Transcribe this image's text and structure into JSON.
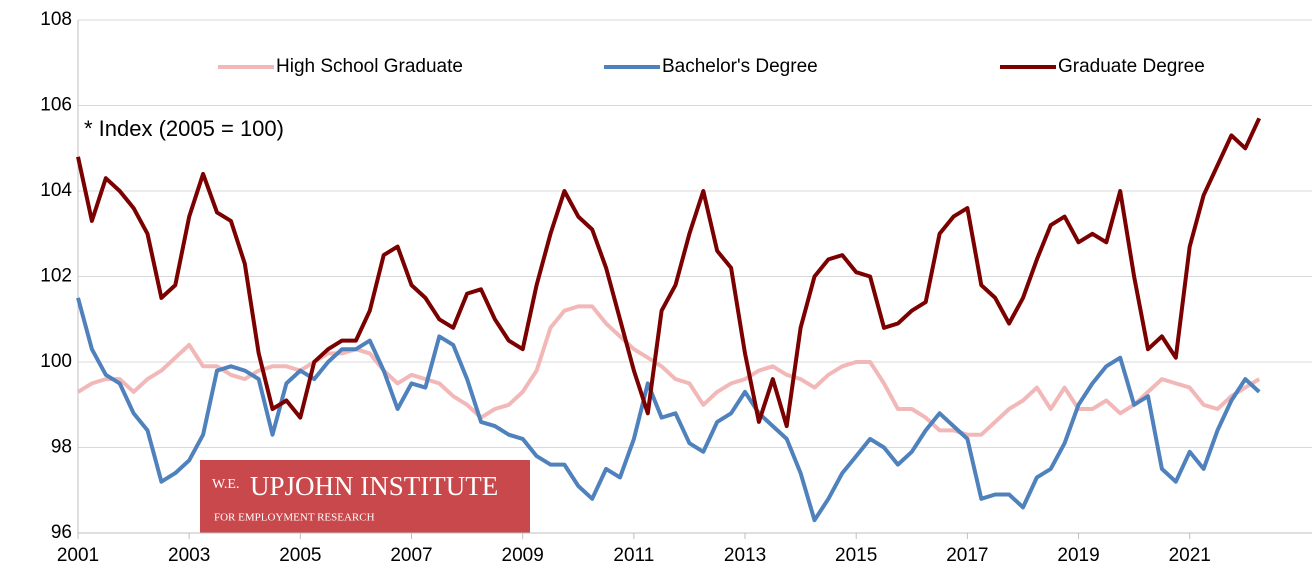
{
  "chart_data": {
    "type": "line",
    "annotation": "* Index (2005 = 100)",
    "logo": {
      "title": "UPJOHN INSTITUTE",
      "prefix": "W.E.",
      "subtitle": "FOR EMPLOYMENT RESEARCH"
    },
    "legend": "top",
    "grid": true,
    "x": [
      2001,
      2001.25,
      2001.5,
      2001.75,
      2002,
      2002.25,
      2002.5,
      2002.75,
      2003,
      2003.25,
      2003.5,
      2003.75,
      2004,
      2004.25,
      2004.5,
      2004.75,
      2005,
      2005.25,
      2005.5,
      2005.75,
      2006,
      2006.25,
      2006.5,
      2006.75,
      2007,
      2007.25,
      2007.5,
      2007.75,
      2008,
      2008.25,
      2008.5,
      2008.75,
      2009,
      2009.25,
      2009.5,
      2009.75,
      2010,
      2010.25,
      2010.5,
      2010.75,
      2011,
      2011.25,
      2011.5,
      2011.75,
      2012,
      2012.25,
      2012.5,
      2012.75,
      2013,
      2013.25,
      2013.5,
      2013.75,
      2014,
      2014.25,
      2014.5,
      2014.75,
      2015,
      2015.25,
      2015.5,
      2015.75,
      2016,
      2016.25,
      2016.5,
      2016.75,
      2017,
      2017.25,
      2017.5,
      2017.75,
      2018,
      2018.25,
      2018.5,
      2018.75,
      2019,
      2019.25,
      2019.5,
      2019.75,
      2020,
      2020.25,
      2020.5,
      2020.75,
      2021,
      2021.25,
      2021.5,
      2021.75,
      2022,
      2022.25
    ],
    "series": [
      {
        "name": "High School Graduate",
        "color": "#f2b8b8",
        "values": [
          99.3,
          99.5,
          99.6,
          99.6,
          99.3,
          99.6,
          99.8,
          100.1,
          100.4,
          99.9,
          99.9,
          99.7,
          99.6,
          99.8,
          99.9,
          99.9,
          99.8,
          100.0,
          100.2,
          100.2,
          100.3,
          100.2,
          99.8,
          99.5,
          99.7,
          99.6,
          99.5,
          99.2,
          99.0,
          98.7,
          98.9,
          99.0,
          99.3,
          99.8,
          100.8,
          101.2,
          101.3,
          101.3,
          100.9,
          100.6,
          100.3,
          100.1,
          99.9,
          99.6,
          99.5,
          99.0,
          99.3,
          99.5,
          99.6,
          99.8,
          99.9,
          99.7,
          99.6,
          99.4,
          99.7,
          99.9,
          100.0,
          100.0,
          99.5,
          98.9,
          98.9,
          98.7,
          98.4,
          98.4,
          98.3,
          98.3,
          98.6,
          98.9,
          99.1,
          99.4,
          98.9,
          99.4,
          98.9,
          98.9,
          99.1,
          98.8,
          99.0,
          99.3,
          99.6,
          99.5,
          99.4,
          99.0,
          98.9,
          99.2,
          99.4,
          99.6
        ]
      },
      {
        "name": "Bachelor's Degree",
        "color": "#4f81bd",
        "values": [
          101.5,
          100.3,
          99.7,
          99.5,
          98.8,
          98.4,
          97.2,
          97.4,
          97.7,
          98.3,
          99.8,
          99.9,
          99.8,
          99.6,
          98.3,
          99.5,
          99.8,
          99.6,
          100.0,
          100.3,
          100.3,
          100.5,
          99.8,
          98.9,
          99.5,
          99.4,
          100.6,
          100.4,
          99.6,
          98.6,
          98.5,
          98.3,
          98.2,
          97.8,
          97.6,
          97.6,
          97.1,
          96.8,
          97.5,
          97.3,
          98.2,
          99.5,
          98.7,
          98.8,
          98.1,
          97.9,
          98.6,
          98.8,
          99.3,
          98.8,
          98.5,
          98.2,
          97.4,
          96.3,
          96.8,
          97.4,
          97.8,
          98.2,
          98.0,
          97.6,
          97.9,
          98.4,
          98.8,
          98.5,
          98.2,
          96.8,
          96.9,
          96.9,
          96.6,
          97.3,
          97.5,
          98.1,
          99.0,
          99.5,
          99.9,
          100.1,
          99.0,
          99.2,
          97.5,
          97.2,
          97.9,
          97.5,
          98.4,
          99.1,
          99.6,
          99.3
        ]
      },
      {
        "name": "Graduate Degree",
        "color": "#7b0000",
        "values": [
          104.8,
          103.3,
          104.3,
          104.0,
          103.6,
          103.0,
          101.5,
          101.8,
          103.4,
          104.4,
          103.5,
          103.3,
          102.3,
          100.2,
          98.9,
          99.1,
          98.7,
          100.0,
          100.3,
          100.5,
          100.5,
          101.2,
          102.5,
          102.7,
          101.8,
          101.5,
          101.0,
          100.8,
          101.6,
          101.7,
          101.0,
          100.5,
          100.3,
          101.8,
          103.0,
          104.0,
          103.4,
          103.1,
          102.2,
          101.0,
          99.8,
          98.8,
          101.2,
          101.8,
          103.0,
          104.0,
          102.6,
          102.2,
          100.2,
          98.6,
          99.6,
          98.5,
          100.8,
          102.0,
          102.4,
          102.5,
          102.1,
          102.0,
          100.8,
          100.9,
          101.2,
          101.4,
          103.0,
          103.4,
          103.6,
          101.8,
          101.5,
          100.9,
          101.5,
          102.4,
          103.2,
          103.4,
          102.8,
          103.0,
          102.8,
          104.0,
          102.0,
          100.3,
          100.6,
          100.1,
          102.7,
          103.9,
          104.6,
          105.3,
          105.0,
          105.7
        ]
      }
    ],
    "xlim": [
      2001,
      2023.2
    ],
    "xticks": [
      2001,
      2003,
      2005,
      2007,
      2009,
      2011,
      2013,
      2015,
      2017,
      2019,
      2021
    ],
    "ylim": [
      96,
      108
    ],
    "yticks": [
      96,
      98,
      100,
      102,
      104,
      106,
      108
    ]
  }
}
